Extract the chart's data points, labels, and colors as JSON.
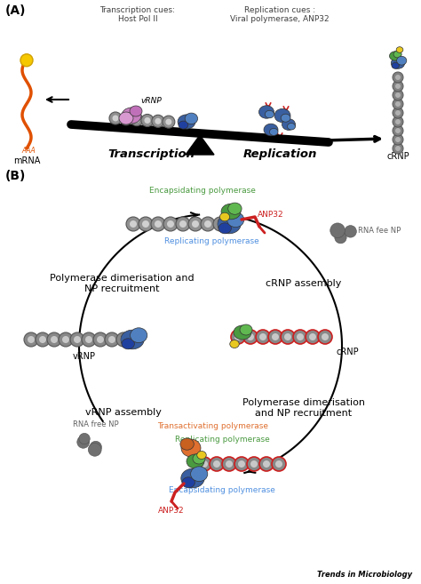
{
  "panel_a_label": "(A)",
  "panel_b_label": "(B)",
  "transcription_cues": "Transcription cues:\nHost Pol II",
  "replication_cues": "Replication cues :\nViral polymerase, ANP32",
  "vrnp_label": "vRNP",
  "crnp_label": "cRNP",
  "mrna_label": "mRNA",
  "transcription_label": "Transcription",
  "replication_label": "Replication",
  "encapsidating_pol": "Encapsidating polymerase",
  "replicating_pol": "Replicating polymerase",
  "anp32_label": "ANP32",
  "rna_fee_np": "RNA fee NP",
  "pol_dim_np": "Polymerase dimerisation and\nNP recruitment",
  "crnp_assembly": "cRNP assembly",
  "vrnp_assembly": "vRNP assembly",
  "pol_dim_np2": "Polymerase dimerisation\nand NP recruitment",
  "transactivating_pol": "Transactivating polymerase",
  "replicating_pol2": "Replicating polymerase",
  "encapsidating_pol2": "Encapsidating polymerase",
  "anp32_label2": "ANP32",
  "rna_free_np2": "RNA free NP",
  "trends_label": "Trends in Microbiology",
  "bg_color": "#ffffff",
  "col_blue": "#3a5fa0",
  "col_blue2": "#5080c0",
  "col_green": "#4a9a40",
  "col_yellow": "#e8c820",
  "col_orange": "#e07030",
  "col_red": "#cc2020",
  "col_pink": "#c880c0",
  "col_gray1": "#909090",
  "col_gray2": "#b8b8b8",
  "col_gray3": "#d0d0d0",
  "col_dark": "#404040",
  "col_black": "#000000"
}
